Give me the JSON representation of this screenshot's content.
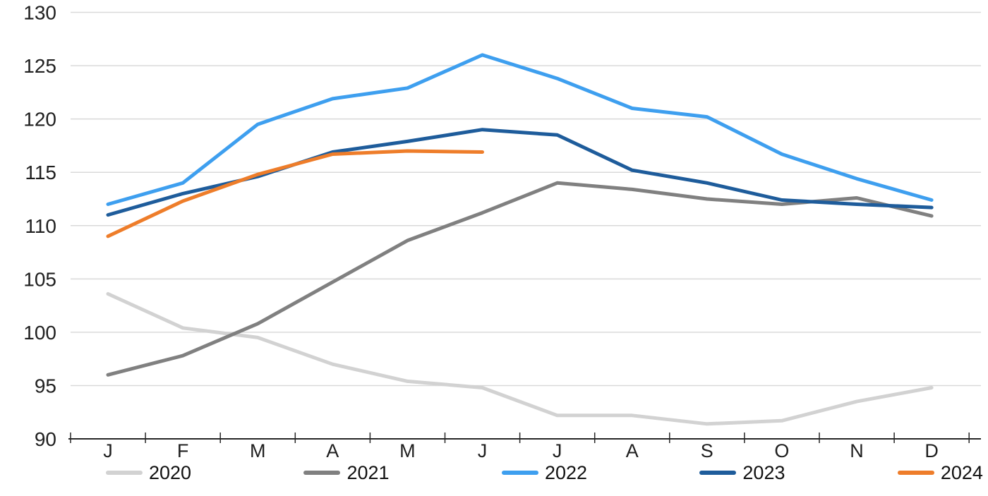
{
  "chart_data": {
    "type": "line",
    "title": "",
    "xlabel": "",
    "ylabel": "",
    "categories": [
      "J",
      "F",
      "M",
      "A",
      "M",
      "J",
      "J",
      "A",
      "S",
      "O",
      "N",
      "D"
    ],
    "y_ticks": [
      90,
      95,
      100,
      105,
      110,
      115,
      120,
      125,
      130
    ],
    "ylim": [
      90,
      130
    ],
    "grid": true,
    "legend_position": "bottom",
    "series": [
      {
        "name": "2020",
        "color": "#D2D2D2",
        "values": [
          103.6,
          100.4,
          99.5,
          97.0,
          95.4,
          94.8,
          92.2,
          92.2,
          91.4,
          91.7,
          93.5,
          94.8
        ]
      },
      {
        "name": "2021",
        "color": "#808080",
        "values": [
          96.0,
          97.8,
          100.8,
          104.7,
          108.6,
          111.2,
          114.0,
          113.4,
          112.5,
          112.0,
          112.6,
          110.9
        ]
      },
      {
        "name": "2022",
        "color": "#3E9FEF",
        "values": [
          112.0,
          114.0,
          119.5,
          121.9,
          122.9,
          126.0,
          123.8,
          121.0,
          120.2,
          116.7,
          114.4,
          112.4
        ]
      },
      {
        "name": "2023",
        "color": "#1E5C9B",
        "values": [
          111.0,
          113.0,
          114.6,
          116.9,
          117.9,
          119.0,
          118.5,
          115.2,
          114.0,
          112.4,
          112.0,
          111.7
        ]
      },
      {
        "name": "2024",
        "color": "#EE7D2A",
        "values": [
          109.0,
          112.3,
          114.8,
          116.7,
          117.0,
          116.9
        ]
      }
    ],
    "colors": {
      "gridline": "#D9D9D9",
      "axis": "#262626",
      "tick_label": "#1f1f1f"
    }
  }
}
